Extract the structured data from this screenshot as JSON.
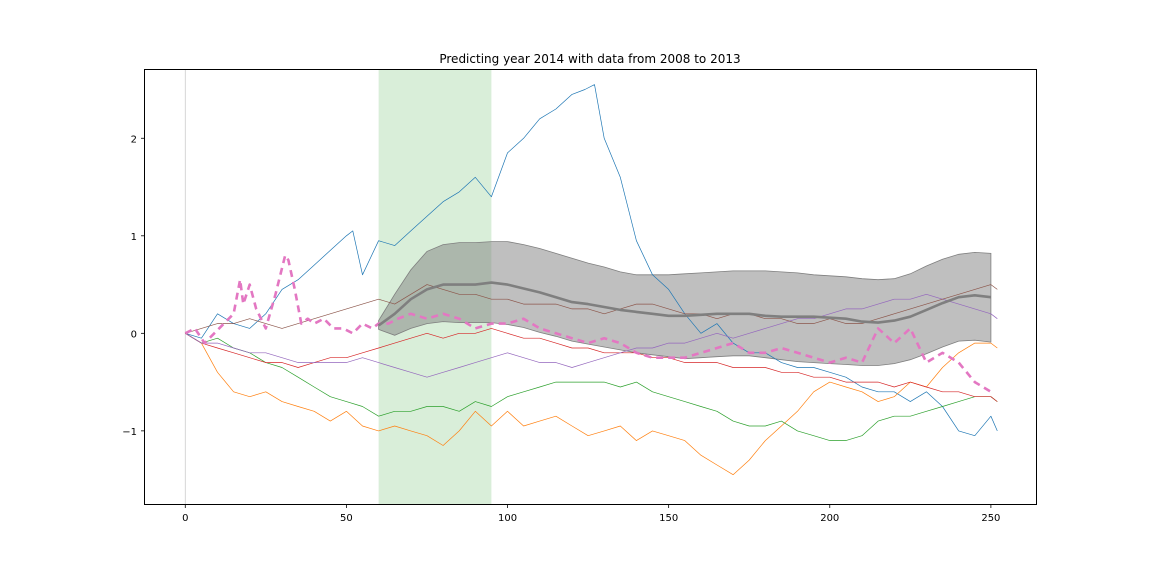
{
  "chart_data": {
    "type": "line",
    "title": "Predicting year 2014 with data from 2008 to 2013",
    "xlabel": "",
    "ylabel": "",
    "xlim": [
      -12.5,
      264
    ],
    "ylim": [
      -1.75,
      2.7
    ],
    "x_ticks": [
      0,
      50,
      100,
      150,
      200,
      250
    ],
    "x_tick_labels": [
      "0",
      "50",
      "100",
      "150",
      "200",
      "250"
    ],
    "y_ticks": [
      -1,
      0,
      1,
      2
    ],
    "y_tick_labels": [
      "−1",
      "0",
      "1",
      "2"
    ],
    "grid": false,
    "legend": "none",
    "shaded_region": {
      "x_start": 60,
      "x_end": 95,
      "color": "#2ca02c",
      "opacity": 0.18
    },
    "vertical_line": {
      "x": 0,
      "color": "#cccccc"
    },
    "series": [
      {
        "color": "#1f77b4",
        "width": 0.7,
        "x": [
          0,
          5,
          10,
          15,
          20,
          25,
          30,
          35,
          40,
          45,
          50,
          52,
          55,
          60,
          65,
          70,
          75,
          80,
          85,
          90,
          95,
          100,
          105,
          110,
          115,
          120,
          124,
          127,
          130,
          135,
          140,
          145,
          150,
          155,
          160,
          165,
          170,
          175,
          180,
          185,
          190,
          195,
          200,
          205,
          210,
          215,
          220,
          225,
          230,
          235,
          240,
          245,
          250,
          252
        ],
        "values": [
          0.0,
          -0.05,
          0.2,
          0.1,
          0.05,
          0.2,
          0.45,
          0.55,
          0.7,
          0.85,
          1.0,
          1.05,
          0.6,
          0.95,
          0.9,
          1.05,
          1.2,
          1.35,
          1.45,
          1.6,
          1.4,
          1.85,
          2.0,
          2.2,
          2.3,
          2.45,
          2.5,
          2.55,
          2.0,
          1.6,
          0.95,
          0.6,
          0.45,
          0.2,
          0.0,
          0.1,
          -0.1,
          -0.2,
          -0.2,
          -0.3,
          -0.35,
          -0.35,
          -0.4,
          -0.45,
          -0.55,
          -0.6,
          -0.6,
          -0.7,
          -0.6,
          -0.75,
          -1.0,
          -1.05,
          -0.85,
          -1.0
        ]
      },
      {
        "color": "#ff7f0e",
        "width": 0.7,
        "x": [
          0,
          5,
          10,
          15,
          20,
          25,
          30,
          35,
          40,
          45,
          50,
          55,
          60,
          65,
          70,
          75,
          80,
          85,
          90,
          95,
          100,
          105,
          110,
          115,
          120,
          125,
          130,
          135,
          140,
          145,
          150,
          155,
          160,
          165,
          170,
          175,
          180,
          185,
          190,
          195,
          200,
          205,
          210,
          215,
          220,
          225,
          230,
          235,
          240,
          245,
          250,
          252
        ],
        "values": [
          0.0,
          -0.1,
          -0.4,
          -0.6,
          -0.65,
          -0.6,
          -0.7,
          -0.75,
          -0.8,
          -0.9,
          -0.8,
          -0.95,
          -1.0,
          -0.95,
          -1.0,
          -1.05,
          -1.15,
          -1.0,
          -0.8,
          -0.95,
          -0.8,
          -0.95,
          -0.9,
          -0.85,
          -0.95,
          -1.05,
          -1.0,
          -0.95,
          -1.1,
          -1.0,
          -1.05,
          -1.1,
          -1.25,
          -1.35,
          -1.45,
          -1.3,
          -1.1,
          -0.95,
          -0.8,
          -0.6,
          -0.5,
          -0.55,
          -0.6,
          -0.7,
          -0.65,
          -0.5,
          -0.55,
          -0.35,
          -0.2,
          -0.1,
          -0.1,
          -0.15
        ]
      },
      {
        "color": "#2ca02c",
        "width": 0.7,
        "x": [
          0,
          5,
          10,
          15,
          20,
          25,
          30,
          35,
          40,
          45,
          50,
          55,
          60,
          65,
          70,
          75,
          80,
          85,
          90,
          95,
          100,
          105,
          110,
          115,
          120,
          125,
          130,
          135,
          140,
          145,
          150,
          155,
          160,
          165,
          170,
          175,
          180,
          185,
          190,
          195,
          200,
          205,
          210,
          215,
          220,
          225,
          230,
          235,
          240,
          245,
          250,
          252
        ],
        "values": [
          0.0,
          -0.1,
          -0.05,
          -0.15,
          -0.2,
          -0.3,
          -0.35,
          -0.45,
          -0.55,
          -0.65,
          -0.7,
          -0.75,
          -0.85,
          -0.8,
          -0.8,
          -0.75,
          -0.75,
          -0.8,
          -0.7,
          -0.75,
          -0.65,
          -0.6,
          -0.55,
          -0.5,
          -0.5,
          -0.5,
          -0.5,
          -0.55,
          -0.5,
          -0.6,
          -0.65,
          -0.7,
          -0.75,
          -0.8,
          -0.9,
          -0.95,
          -0.95,
          -0.9,
          -1.0,
          -1.05,
          -1.1,
          -1.1,
          -1.05,
          -0.9,
          -0.85,
          -0.85,
          -0.8,
          -0.75,
          -0.7,
          -0.65,
          -0.65,
          -0.7
        ]
      },
      {
        "color": "#d62728",
        "width": 0.7,
        "x": [
          0,
          5,
          10,
          15,
          20,
          25,
          30,
          35,
          40,
          45,
          50,
          55,
          60,
          65,
          70,
          75,
          80,
          85,
          90,
          95,
          100,
          105,
          110,
          115,
          120,
          125,
          130,
          135,
          140,
          145,
          150,
          155,
          160,
          165,
          170,
          175,
          180,
          185,
          190,
          195,
          200,
          205,
          210,
          215,
          220,
          225,
          230,
          235,
          240,
          245,
          250,
          252
        ],
        "values": [
          0.0,
          -0.1,
          -0.15,
          -0.2,
          -0.25,
          -0.3,
          -0.3,
          -0.35,
          -0.3,
          -0.25,
          -0.25,
          -0.2,
          -0.15,
          -0.1,
          -0.05,
          0.0,
          -0.05,
          0.0,
          0.0,
          0.05,
          0.0,
          -0.05,
          -0.05,
          -0.1,
          -0.15,
          -0.15,
          -0.2,
          -0.2,
          -0.2,
          -0.25,
          -0.25,
          -0.3,
          -0.3,
          -0.3,
          -0.35,
          -0.35,
          -0.35,
          -0.4,
          -0.4,
          -0.45,
          -0.45,
          -0.5,
          -0.5,
          -0.5,
          -0.55,
          -0.5,
          -0.55,
          -0.6,
          -0.6,
          -0.65,
          -0.65,
          -0.7
        ]
      },
      {
        "color": "#9467bd",
        "width": 0.7,
        "x": [
          0,
          5,
          10,
          15,
          20,
          25,
          30,
          35,
          40,
          45,
          50,
          55,
          60,
          65,
          70,
          75,
          80,
          85,
          90,
          95,
          100,
          105,
          110,
          115,
          120,
          125,
          130,
          135,
          140,
          145,
          150,
          155,
          160,
          165,
          170,
          175,
          180,
          185,
          190,
          195,
          200,
          205,
          210,
          215,
          220,
          225,
          230,
          235,
          240,
          245,
          250,
          252
        ],
        "values": [
          0.0,
          -0.1,
          -0.1,
          -0.15,
          -0.2,
          -0.2,
          -0.25,
          -0.3,
          -0.3,
          -0.3,
          -0.3,
          -0.25,
          -0.3,
          -0.35,
          -0.4,
          -0.45,
          -0.4,
          -0.35,
          -0.3,
          -0.25,
          -0.2,
          -0.25,
          -0.3,
          -0.3,
          -0.35,
          -0.3,
          -0.25,
          -0.2,
          -0.15,
          -0.15,
          -0.1,
          -0.1,
          -0.05,
          0.0,
          -0.05,
          0.0,
          0.05,
          0.1,
          0.15,
          0.15,
          0.2,
          0.25,
          0.25,
          0.3,
          0.35,
          0.35,
          0.4,
          0.35,
          0.3,
          0.25,
          0.2,
          0.15
        ]
      },
      {
        "color": "#8c564b",
        "width": 0.7,
        "x": [
          0,
          5,
          10,
          15,
          20,
          25,
          30,
          35,
          40,
          45,
          50,
          55,
          60,
          65,
          70,
          75,
          80,
          85,
          90,
          95,
          100,
          105,
          110,
          115,
          120,
          125,
          130,
          135,
          140,
          145,
          150,
          155,
          160,
          165,
          170,
          175,
          180,
          185,
          190,
          195,
          200,
          205,
          210,
          215,
          220,
          225,
          230,
          235,
          240,
          245,
          250,
          252
        ],
        "values": [
          0.0,
          0.05,
          0.1,
          0.1,
          0.15,
          0.1,
          0.05,
          0.1,
          0.15,
          0.2,
          0.25,
          0.3,
          0.35,
          0.3,
          0.4,
          0.5,
          0.45,
          0.4,
          0.4,
          0.35,
          0.35,
          0.3,
          0.3,
          0.3,
          0.25,
          0.25,
          0.2,
          0.25,
          0.3,
          0.3,
          0.25,
          0.2,
          0.2,
          0.15,
          0.2,
          0.2,
          0.15,
          0.15,
          0.1,
          0.1,
          0.15,
          0.1,
          0.1,
          0.15,
          0.2,
          0.25,
          0.3,
          0.35,
          0.4,
          0.45,
          0.5,
          0.45
        ]
      },
      {
        "color": "#e377c2",
        "width": 2.6,
        "dash": "7,5",
        "x": [
          0,
          3,
          6,
          9,
          12,
          15,
          17,
          18,
          20,
          22,
          25,
          28,
          31,
          32,
          34,
          36,
          38,
          40,
          43,
          46,
          49,
          52,
          55,
          58,
          60,
          63,
          66,
          70,
          75,
          80,
          85,
          90,
          95,
          100,
          105,
          110,
          115,
          120,
          125,
          130,
          135,
          140,
          145,
          150,
          155,
          160,
          165,
          170,
          175,
          180,
          185,
          190,
          195,
          200,
          205,
          210,
          215,
          220,
          225,
          230,
          235,
          240,
          245,
          250
        ],
        "values": [
          0.0,
          0.05,
          -0.1,
          0.0,
          0.1,
          0.2,
          0.55,
          0.3,
          0.5,
          0.25,
          0.05,
          0.4,
          0.8,
          0.75,
          0.45,
          0.1,
          0.15,
          0.1,
          0.15,
          0.05,
          0.05,
          0.0,
          0.1,
          0.05,
          0.1,
          0.1,
          0.15,
          0.2,
          0.15,
          0.2,
          0.15,
          0.05,
          0.1,
          0.1,
          0.15,
          0.05,
          0.0,
          -0.05,
          -0.1,
          -0.05,
          -0.1,
          -0.2,
          -0.25,
          -0.25,
          -0.25,
          -0.2,
          -0.15,
          -0.1,
          -0.2,
          -0.2,
          -0.15,
          -0.2,
          -0.25,
          -0.3,
          -0.25,
          -0.3,
          0.05,
          -0.1,
          0.05,
          -0.3,
          -0.2,
          -0.3,
          -0.5,
          -0.6
        ]
      }
    ],
    "prediction": {
      "color": "#7f7f7f",
      "line_width": 2.6,
      "band_opacity": 0.5,
      "x": [
        60,
        65,
        70,
        75,
        80,
        85,
        90,
        95,
        100,
        105,
        110,
        115,
        120,
        125,
        130,
        135,
        140,
        145,
        150,
        155,
        160,
        165,
        170,
        175,
        180,
        185,
        190,
        195,
        200,
        205,
        210,
        215,
        220,
        225,
        230,
        235,
        240,
        245,
        250
      ],
      "mean": [
        0.08,
        0.2,
        0.35,
        0.45,
        0.5,
        0.5,
        0.5,
        0.52,
        0.5,
        0.46,
        0.42,
        0.37,
        0.32,
        0.3,
        0.27,
        0.24,
        0.22,
        0.2,
        0.18,
        0.18,
        0.19,
        0.2,
        0.2,
        0.2,
        0.18,
        0.17,
        0.17,
        0.17,
        0.16,
        0.15,
        0.12,
        0.11,
        0.13,
        0.17,
        0.24,
        0.31,
        0.37,
        0.39,
        0.37
      ],
      "upper": [
        0.13,
        0.4,
        0.65,
        0.84,
        0.91,
        0.93,
        0.93,
        0.94,
        0.94,
        0.91,
        0.87,
        0.82,
        0.77,
        0.72,
        0.68,
        0.63,
        0.6,
        0.6,
        0.6,
        0.61,
        0.62,
        0.63,
        0.64,
        0.64,
        0.64,
        0.63,
        0.62,
        0.6,
        0.59,
        0.58,
        0.56,
        0.55,
        0.56,
        0.61,
        0.69,
        0.76,
        0.81,
        0.83,
        0.82
      ],
      "lower": [
        0.04,
        -0.02,
        0.05,
        0.1,
        0.12,
        0.11,
        0.11,
        0.11,
        0.09,
        0.06,
        0.01,
        -0.03,
        -0.08,
        -0.11,
        -0.14,
        -0.17,
        -0.2,
        -0.22,
        -0.24,
        -0.26,
        -0.25,
        -0.24,
        -0.23,
        -0.23,
        -0.25,
        -0.27,
        -0.29,
        -0.3,
        -0.31,
        -0.32,
        -0.33,
        -0.33,
        -0.31,
        -0.27,
        -0.21,
        -0.14,
        -0.08,
        -0.07,
        -0.09
      ]
    }
  }
}
